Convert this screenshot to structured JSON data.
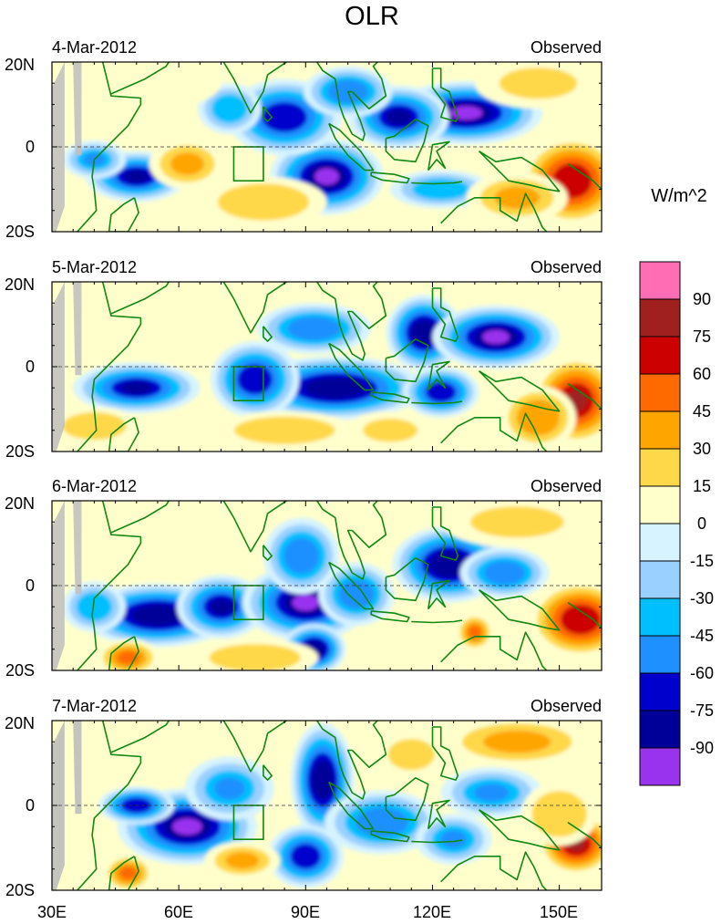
{
  "title": "OLR",
  "units": "W/m^2",
  "colors": {
    "levels": [
      "#9933EE",
      "#000099",
      "#0000CC",
      "#1E90FF",
      "#00BFFF",
      "#9AD0FF",
      "#D6F3FF",
      "#FFFFCC",
      "#FFD84A",
      "#FFA500",
      "#FF6A00",
      "#CC0000",
      "#A02020",
      "#FF6EB4"
    ],
    "coast": "#118811",
    "land_missing": "#BEBEBE"
  },
  "colorbar": {
    "labels": [
      "90",
      "75",
      "60",
      "45",
      "30",
      "15",
      "0",
      "-15",
      "-30",
      "-45",
      "-60",
      "-75",
      "-90"
    ]
  },
  "panels": [
    {
      "date": "4-Mar-2012",
      "tag": "Observed"
    },
    {
      "date": "5-Mar-2012",
      "tag": "Observed"
    },
    {
      "date": "6-Mar-2012",
      "tag": "Observed"
    },
    {
      "date": "7-Mar-2012",
      "tag": "Observed"
    }
  ],
  "chart_data": {
    "type": "heatmap",
    "title": "OLR",
    "units": "W/m^2",
    "xlim": [
      30,
      160
    ],
    "ylim": [
      -20,
      20
    ],
    "x_tick_labels": [
      "30E",
      "60E",
      "90E",
      "120E",
      "150E"
    ],
    "x_tick_values": [
      30,
      60,
      90,
      120,
      150
    ],
    "y_tick_labels": [
      "20N",
      "0",
      "20S"
    ],
    "y_tick_values": [
      20,
      0,
      -20
    ],
    "levels": [
      -90,
      -75,
      -60,
      -45,
      -30,
      -15,
      0,
      15,
      30,
      45,
      60,
      75,
      90
    ],
    "panels": [
      {
        "date": "4-Mar-2012",
        "label": "Observed",
        "anomalies": [
          {
            "lon": 128,
            "lat": 8,
            "value": -95,
            "rx": 12,
            "ry": 5
          },
          {
            "lon": 112,
            "lat": 7,
            "value": -80,
            "rx": 8,
            "ry": 5
          },
          {
            "lon": 95,
            "lat": -7,
            "value": -95,
            "rx": 9,
            "ry": 6
          },
          {
            "lon": 85,
            "lat": 7,
            "value": -70,
            "rx": 9,
            "ry": 6
          },
          {
            "lon": 50,
            "lat": -7,
            "value": -80,
            "rx": 8,
            "ry": 4
          },
          {
            "lon": 40,
            "lat": -3,
            "value": -50,
            "rx": 5,
            "ry": 3
          },
          {
            "lon": 72,
            "lat": 9,
            "value": -45,
            "rx": 5,
            "ry": 4
          },
          {
            "lon": 100,
            "lat": 13,
            "value": -55,
            "rx": 7,
            "ry": 4
          },
          {
            "lon": 122,
            "lat": -10,
            "value": -40,
            "rx": 8,
            "ry": 3
          },
          {
            "lon": 153,
            "lat": -8,
            "value": 70,
            "rx": 8,
            "ry": 7
          },
          {
            "lon": 140,
            "lat": -12,
            "value": 35,
            "rx": 8,
            "ry": 4
          },
          {
            "lon": 62,
            "lat": -4,
            "value": 35,
            "rx": 6,
            "ry": 4
          },
          {
            "lon": 80,
            "lat": -13,
            "value": 25,
            "rx": 10,
            "ry": 4
          },
          {
            "lon": 145,
            "lat": 15,
            "value": 20,
            "rx": 10,
            "ry": 4
          },
          {
            "lon": 55,
            "lat": 15,
            "value": 10,
            "rx": 10,
            "ry": 4
          }
        ]
      },
      {
        "date": "5-Mar-2012",
        "label": "Observed",
        "anomalies": [
          {
            "lon": 97,
            "lat": -5,
            "value": -90,
            "rx": 14,
            "ry": 5
          },
          {
            "lon": 78,
            "lat": -3,
            "value": -75,
            "rx": 7,
            "ry": 6
          },
          {
            "lon": 118,
            "lat": 8,
            "value": -85,
            "rx": 6,
            "ry": 6
          },
          {
            "lon": 135,
            "lat": 7,
            "value": -95,
            "rx": 10,
            "ry": 5
          },
          {
            "lon": 122,
            "lat": -6,
            "value": -70,
            "rx": 6,
            "ry": 4
          },
          {
            "lon": 50,
            "lat": -5,
            "value": -80,
            "rx": 10,
            "ry": 4
          },
          {
            "lon": 92,
            "lat": 9,
            "value": -55,
            "rx": 9,
            "ry": 4
          },
          {
            "lon": 154,
            "lat": -8,
            "value": 75,
            "rx": 7,
            "ry": 7
          },
          {
            "lon": 145,
            "lat": -12,
            "value": 40,
            "rx": 6,
            "ry": 5
          },
          {
            "lon": 85,
            "lat": -15,
            "value": 25,
            "rx": 11,
            "ry": 3
          },
          {
            "lon": 40,
            "lat": -14,
            "value": 25,
            "rx": 7,
            "ry": 3
          },
          {
            "lon": 110,
            "lat": -15,
            "value": 18,
            "rx": 7,
            "ry": 3
          }
        ]
      },
      {
        "date": "6-Mar-2012",
        "label": "Observed",
        "anomalies": [
          {
            "lon": 55,
            "lat": -7,
            "value": -90,
            "rx": 12,
            "ry": 5
          },
          {
            "lon": 70,
            "lat": -5,
            "value": -80,
            "rx": 7,
            "ry": 5
          },
          {
            "lon": 90,
            "lat": -4,
            "value": -95,
            "rx": 10,
            "ry": 6
          },
          {
            "lon": 92,
            "lat": -15,
            "value": -85,
            "rx": 5,
            "ry": 4
          },
          {
            "lon": 124,
            "lat": 5,
            "value": -85,
            "rx": 9,
            "ry": 6
          },
          {
            "lon": 102,
            "lat": -2,
            "value": -60,
            "rx": 6,
            "ry": 5
          },
          {
            "lon": 89,
            "lat": 7,
            "value": -60,
            "rx": 6,
            "ry": 6
          },
          {
            "lon": 137,
            "lat": 3,
            "value": -60,
            "rx": 7,
            "ry": 4
          },
          {
            "lon": 40,
            "lat": -5,
            "value": -45,
            "rx": 5,
            "ry": 4
          },
          {
            "lon": 155,
            "lat": -8,
            "value": 70,
            "rx": 8,
            "ry": 6
          },
          {
            "lon": 48,
            "lat": -17,
            "value": 45,
            "rx": 5,
            "ry": 3
          },
          {
            "lon": 78,
            "lat": -17,
            "value": 25,
            "rx": 10,
            "ry": 3
          },
          {
            "lon": 130,
            "lat": -11,
            "value": 45,
            "rx": 3,
            "ry": 3
          },
          {
            "lon": 140,
            "lat": 15,
            "value": 15,
            "rx": 12,
            "ry": 4
          }
        ]
      },
      {
        "date": "7-Mar-2012",
        "label": "Observed",
        "anomalies": [
          {
            "lon": 62,
            "lat": -5,
            "value": -95,
            "rx": 11,
            "ry": 6
          },
          {
            "lon": 50,
            "lat": 0,
            "value": -75,
            "rx": 6,
            "ry": 3
          },
          {
            "lon": 94,
            "lat": 6,
            "value": -85,
            "rx": 5,
            "ry": 9
          },
          {
            "lon": 90,
            "lat": -12,
            "value": -75,
            "rx": 6,
            "ry": 5
          },
          {
            "lon": 108,
            "lat": -4,
            "value": -55,
            "rx": 9,
            "ry": 5
          },
          {
            "lon": 72,
            "lat": 4,
            "value": -50,
            "rx": 7,
            "ry": 5
          },
          {
            "lon": 134,
            "lat": 3,
            "value": -50,
            "rx": 8,
            "ry": 4
          },
          {
            "lon": 125,
            "lat": -8,
            "value": -50,
            "rx": 6,
            "ry": 4
          },
          {
            "lon": 154,
            "lat": -9,
            "value": 75,
            "rx": 6,
            "ry": 5
          },
          {
            "lon": 140,
            "lat": 15,
            "value": 35,
            "rx": 12,
            "ry": 4
          },
          {
            "lon": 75,
            "lat": -13,
            "value": 30,
            "rx": 6,
            "ry": 3
          },
          {
            "lon": 48,
            "lat": -16,
            "value": 45,
            "rx": 4,
            "ry": 3
          },
          {
            "lon": 115,
            "lat": 12,
            "value": 20,
            "rx": 6,
            "ry": 4
          },
          {
            "lon": 150,
            "lat": -2,
            "value": 25,
            "rx": 6,
            "ry": 5
          }
        ]
      }
    ]
  }
}
